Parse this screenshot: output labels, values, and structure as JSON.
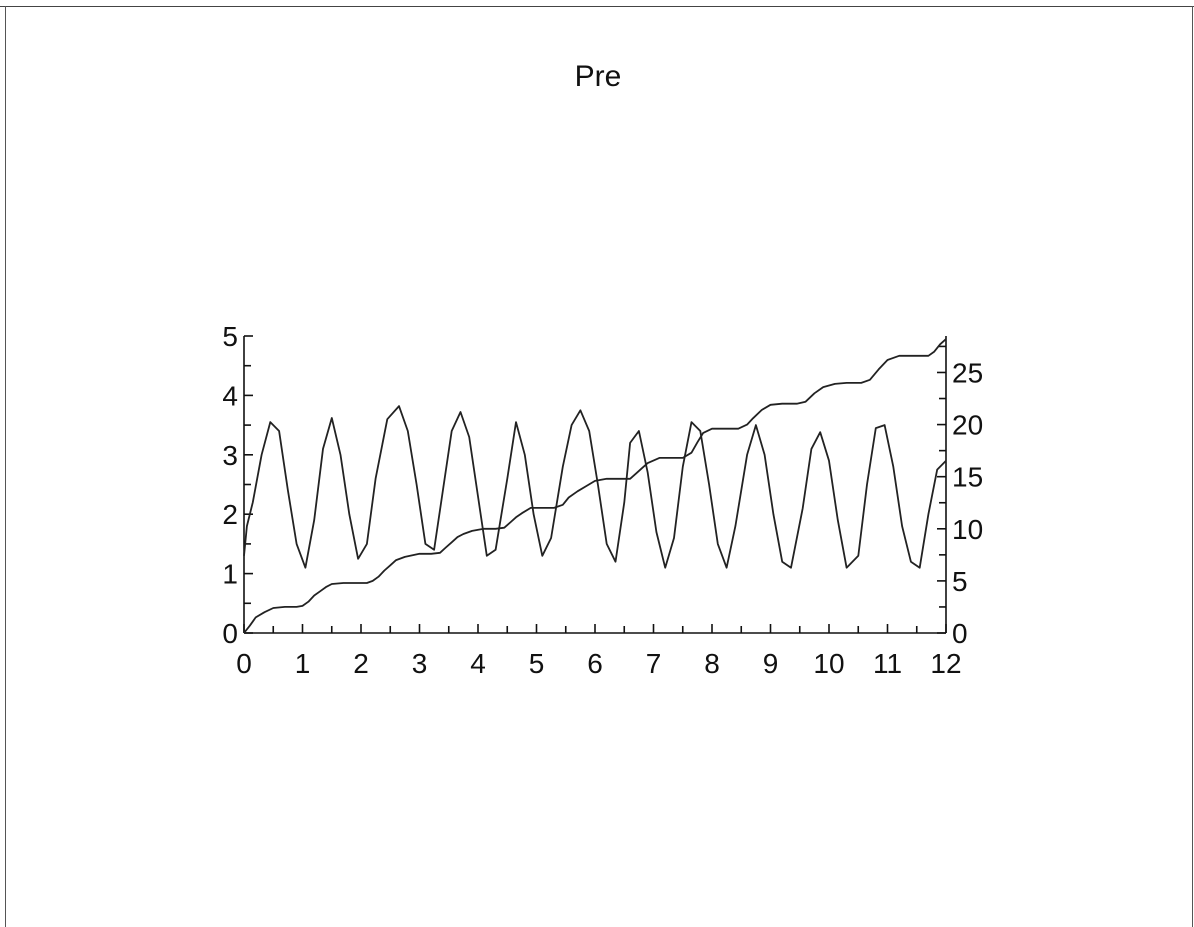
{
  "chart_data": {
    "type": "line",
    "title": "Pre",
    "xlabel": "",
    "ylabel": "",
    "y2label": "",
    "xlim": [
      0,
      12
    ],
    "ylim": [
      0,
      5
    ],
    "y2lim": [
      0,
      28.5
    ],
    "xticks": [
      "0",
      "1",
      "2",
      "3",
      "4",
      "5",
      "6",
      "7",
      "8",
      "9",
      "10",
      "11",
      "12"
    ],
    "yticks": [
      "0",
      "1",
      "2",
      "3",
      "4",
      "5"
    ],
    "y2ticks": [
      "0",
      "5",
      "10",
      "15",
      "20",
      "25"
    ],
    "grid": false,
    "legend": "none",
    "series": [
      {
        "axis": "left",
        "x": [
          0,
          0.05,
          0.15,
          0.3,
          0.45,
          0.6,
          0.75,
          0.9,
          1.05,
          1.2,
          1.35,
          1.5,
          1.65,
          1.8,
          1.95,
          2.1,
          2.25,
          2.45,
          2.65,
          2.8,
          2.95,
          3.1,
          3.25,
          3.4,
          3.55,
          3.7,
          3.85,
          4.0,
          4.15,
          4.3,
          4.5,
          4.65,
          4.8,
          4.95,
          5.1,
          5.25,
          5.45,
          5.6,
          5.75,
          5.9,
          6.05,
          6.2,
          6.35,
          6.5,
          6.6,
          6.75,
          6.9,
          7.05,
          7.2,
          7.35,
          7.5,
          7.65,
          7.8,
          7.95,
          8.1,
          8.25,
          8.4,
          8.6,
          8.75,
          8.9,
          9.05,
          9.2,
          9.35,
          9.55,
          9.7,
          9.85,
          10.0,
          10.15,
          10.3,
          10.5,
          10.65,
          10.8,
          10.95,
          11.1,
          11.25,
          11.4,
          11.55,
          11.7,
          11.85,
          12.0
        ],
        "y": [
          1.3,
          1.8,
          2.2,
          3.0,
          3.55,
          3.4,
          2.4,
          1.5,
          1.1,
          1.9,
          3.1,
          3.62,
          3.0,
          2.0,
          1.25,
          1.5,
          2.6,
          3.6,
          3.82,
          3.4,
          2.5,
          1.5,
          1.4,
          2.4,
          3.4,
          3.72,
          3.3,
          2.3,
          1.3,
          1.4,
          2.6,
          3.55,
          3.0,
          2.0,
          1.3,
          1.6,
          2.8,
          3.5,
          3.75,
          3.4,
          2.5,
          1.5,
          1.2,
          2.2,
          3.2,
          3.4,
          2.7,
          1.7,
          1.1,
          1.6,
          2.8,
          3.55,
          3.4,
          2.5,
          1.5,
          1.1,
          1.8,
          3.0,
          3.5,
          3.0,
          2.0,
          1.2,
          1.1,
          2.1,
          3.1,
          3.38,
          2.9,
          1.9,
          1.1,
          1.3,
          2.5,
          3.45,
          3.5,
          2.8,
          1.8,
          1.2,
          1.1,
          2.0,
          2.75,
          2.9
        ]
      },
      {
        "axis": "right",
        "x": [
          0,
          0.1,
          0.2,
          0.35,
          0.5,
          0.7,
          0.9,
          1.0,
          1.1,
          1.2,
          1.3,
          1.4,
          1.5,
          1.7,
          1.9,
          2.1,
          2.2,
          2.3,
          2.4,
          2.5,
          2.6,
          2.75,
          3.0,
          3.2,
          3.35,
          3.45,
          3.55,
          3.65,
          3.75,
          3.9,
          4.1,
          4.3,
          4.45,
          4.55,
          4.65,
          4.75,
          4.9,
          5.1,
          5.3,
          5.45,
          5.55,
          5.7,
          5.85,
          6.0,
          6.2,
          6.4,
          6.6,
          6.7,
          6.8,
          6.9,
          7.1,
          7.3,
          7.5,
          7.65,
          7.75,
          7.85,
          8.0,
          8.2,
          8.45,
          8.6,
          8.7,
          8.85,
          9.0,
          9.2,
          9.45,
          9.6,
          9.75,
          9.9,
          10.1,
          10.3,
          10.55,
          10.7,
          10.85,
          11.0,
          11.2,
          11.5,
          11.7,
          11.8,
          11.9,
          12.0
        ],
        "y": [
          0,
          0.7,
          1.5,
          2.0,
          2.4,
          2.5,
          2.5,
          2.6,
          3.0,
          3.6,
          4.0,
          4.4,
          4.7,
          4.8,
          4.8,
          4.8,
          5.0,
          5.4,
          6.0,
          6.5,
          7.0,
          7.3,
          7.6,
          7.6,
          7.7,
          8.2,
          8.7,
          9.2,
          9.5,
          9.8,
          10.0,
          10.0,
          10.1,
          10.6,
          11.1,
          11.5,
          12.0,
          12.0,
          12.0,
          12.3,
          13.0,
          13.6,
          14.1,
          14.6,
          14.8,
          14.8,
          14.8,
          15.3,
          15.8,
          16.3,
          16.8,
          16.8,
          16.8,
          17.3,
          18.3,
          19.2,
          19.6,
          19.6,
          19.6,
          20.0,
          20.6,
          21.4,
          21.9,
          22.0,
          22.0,
          22.2,
          23.0,
          23.6,
          23.9,
          24.0,
          24.0,
          24.3,
          25.3,
          26.2,
          26.6,
          26.6,
          26.6,
          27.0,
          27.7,
          28.2
        ]
      }
    ]
  }
}
